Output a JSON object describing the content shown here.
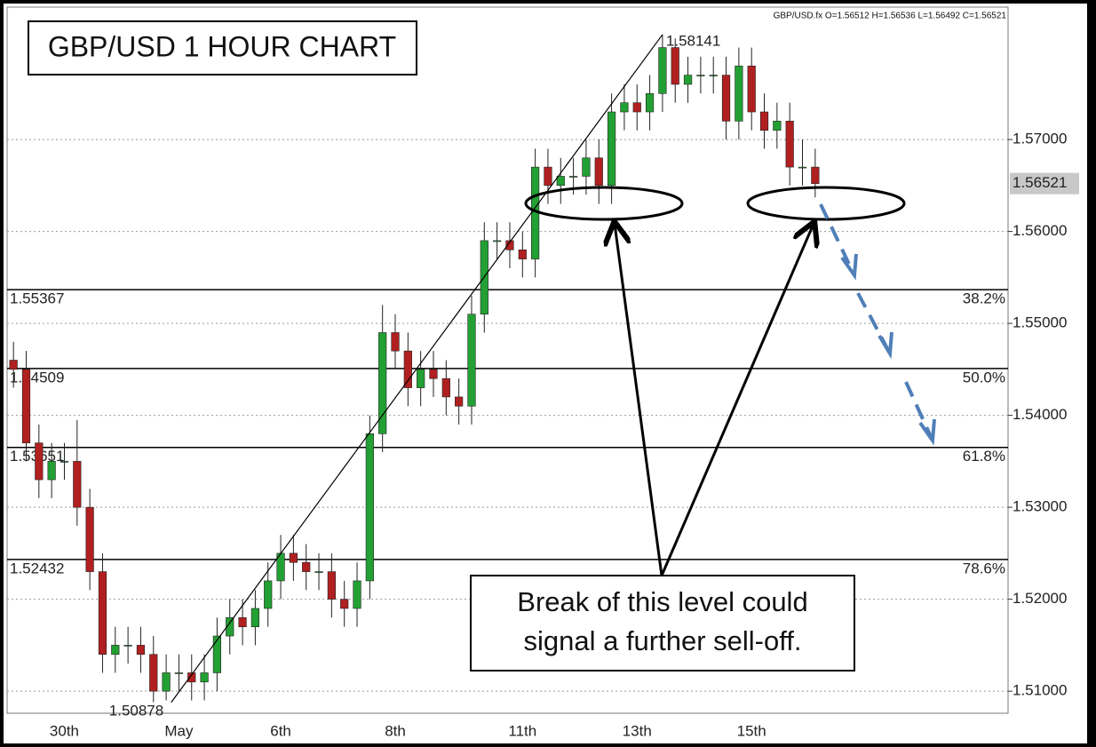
{
  "chart_data": {
    "type": "candlestick",
    "title": "GBP/USD 1 HOUR CHART",
    "header": "GBP/USD.fx O=1.56512 H=1.56536 L=1.56492 C=1.56521",
    "categories": [
      null,
      null,
      null,
      null,
      "30th",
      null,
      null,
      null,
      null,
      null,
      null,
      null,
      null,
      "May",
      null,
      null,
      null,
      null,
      null,
      null,
      null,
      "6th",
      null,
      null,
      null,
      null,
      null,
      null,
      null,
      null,
      "8th",
      null,
      null,
      null,
      null,
      null,
      null,
      null,
      null,
      null,
      "11th",
      null,
      null,
      null,
      null,
      null,
      null,
      null,
      null,
      "13th",
      null,
      null,
      null,
      null,
      null,
      null,
      null,
      null,
      "15th",
      null,
      null,
      null,
      null,
      null
    ],
    "open": [
      1.546,
      1.545,
      1.537,
      1.533,
      1.535,
      1.535,
      1.53,
      1.523,
      1.514,
      1.515,
      1.515,
      1.514,
      1.51,
      1.512,
      1.512,
      1.511,
      1.512,
      1.516,
      1.518,
      1.517,
      1.519,
      1.522,
      1.525,
      1.524,
      1.523,
      1.523,
      1.52,
      1.519,
      1.522,
      1.538,
      1.549,
      1.547,
      1.543,
      1.545,
      1.544,
      1.542,
      1.541,
      1.551,
      1.559,
      1.559,
      1.558,
      1.557,
      1.567,
      1.565,
      1.566,
      1.566,
      1.568,
      1.565,
      1.573,
      1.574,
      1.573,
      1.575,
      1.58,
      1.576,
      1.577,
      1.577,
      1.577,
      1.572,
      1.578,
      1.573,
      1.571,
      1.572,
      1.567,
      1.567
    ],
    "high": [
      1.548,
      1.547,
      1.539,
      1.537,
      1.537,
      1.5395,
      1.532,
      1.525,
      1.517,
      1.517,
      1.517,
      1.516,
      1.514,
      1.514,
      1.514,
      1.514,
      1.518,
      1.52,
      1.52,
      1.521,
      1.524,
      1.527,
      1.527,
      1.526,
      1.525,
      1.525,
      1.522,
      1.524,
      1.54,
      1.552,
      1.551,
      1.549,
      1.547,
      1.547,
      1.546,
      1.544,
      1.553,
      1.561,
      1.561,
      1.561,
      1.56,
      1.569,
      1.569,
      1.568,
      1.568,
      1.57,
      1.57,
      1.575,
      1.576,
      1.576,
      1.577,
      1.5814,
      1.581,
      1.579,
      1.579,
      1.579,
      1.579,
      1.58,
      1.58,
      1.575,
      1.574,
      1.574,
      1.57,
      1.569
    ],
    "low": [
      1.543,
      1.535,
      1.531,
      1.531,
      1.533,
      1.528,
      1.521,
      1.512,
      1.512,
      1.513,
      1.512,
      1.5088,
      1.509,
      1.51,
      1.509,
      1.509,
      1.51,
      1.514,
      1.515,
      1.515,
      1.517,
      1.52,
      1.522,
      1.521,
      1.521,
      1.518,
      1.517,
      1.517,
      1.52,
      1.536,
      1.545,
      1.541,
      1.541,
      1.542,
      1.54,
      1.539,
      1.539,
      1.549,
      1.557,
      1.556,
      1.555,
      1.555,
      1.563,
      1.563,
      1.564,
      1.564,
      1.563,
      1.563,
      1.571,
      1.571,
      1.571,
      1.573,
      1.574,
      1.574,
      1.575,
      1.575,
      1.57,
      1.57,
      1.571,
      1.569,
      1.569,
      1.565,
      1.565,
      1.5637
    ],
    "close": [
      1.545,
      1.537,
      1.533,
      1.535,
      1.535,
      1.53,
      1.523,
      1.514,
      1.515,
      1.515,
      1.514,
      1.51,
      1.512,
      1.512,
      1.511,
      1.512,
      1.516,
      1.518,
      1.517,
      1.519,
      1.522,
      1.525,
      1.524,
      1.523,
      1.523,
      1.52,
      1.519,
      1.522,
      1.538,
      1.549,
      1.547,
      1.543,
      1.545,
      1.544,
      1.542,
      1.541,
      1.551,
      1.559,
      1.559,
      1.558,
      1.557,
      1.567,
      1.565,
      1.566,
      1.566,
      1.568,
      1.565,
      1.573,
      1.574,
      1.573,
      1.575,
      1.58,
      1.576,
      1.577,
      1.577,
      1.577,
      1.572,
      1.578,
      1.573,
      1.571,
      1.572,
      1.567,
      1.567,
      1.5652
    ],
    "up_color": "#22a033",
    "down_color": "#b02020",
    "ylim": [
      1.5076,
      1.5844
    ],
    "yticks": [
      {
        "value": 1.51,
        "label": "1.51000"
      },
      {
        "value": 1.52,
        "label": "1.52000"
      },
      {
        "value": 1.53,
        "label": "1.53000"
      },
      {
        "value": 1.54,
        "label": "1.54000"
      },
      {
        "value": 1.55,
        "label": "1.55000"
      },
      {
        "value": 1.56,
        "label": "1.56000"
      },
      {
        "value": 1.57,
        "label": "1.57000"
      }
    ],
    "grid": true,
    "current_price": 1.56521,
    "swing_low": 1.50878,
    "swing_high": 1.58141,
    "levels": [
      {
        "price": 1.55367,
        "label": "38.2%"
      },
      {
        "price": 1.54509,
        "label": "50.0%"
      },
      {
        "price": 1.53651,
        "label": "61.8%"
      },
      {
        "price": 1.52432,
        "label": "78.6%"
      }
    ],
    "annotation": [
      "Break of this level could",
      "signal a further sell-off."
    ]
  }
}
